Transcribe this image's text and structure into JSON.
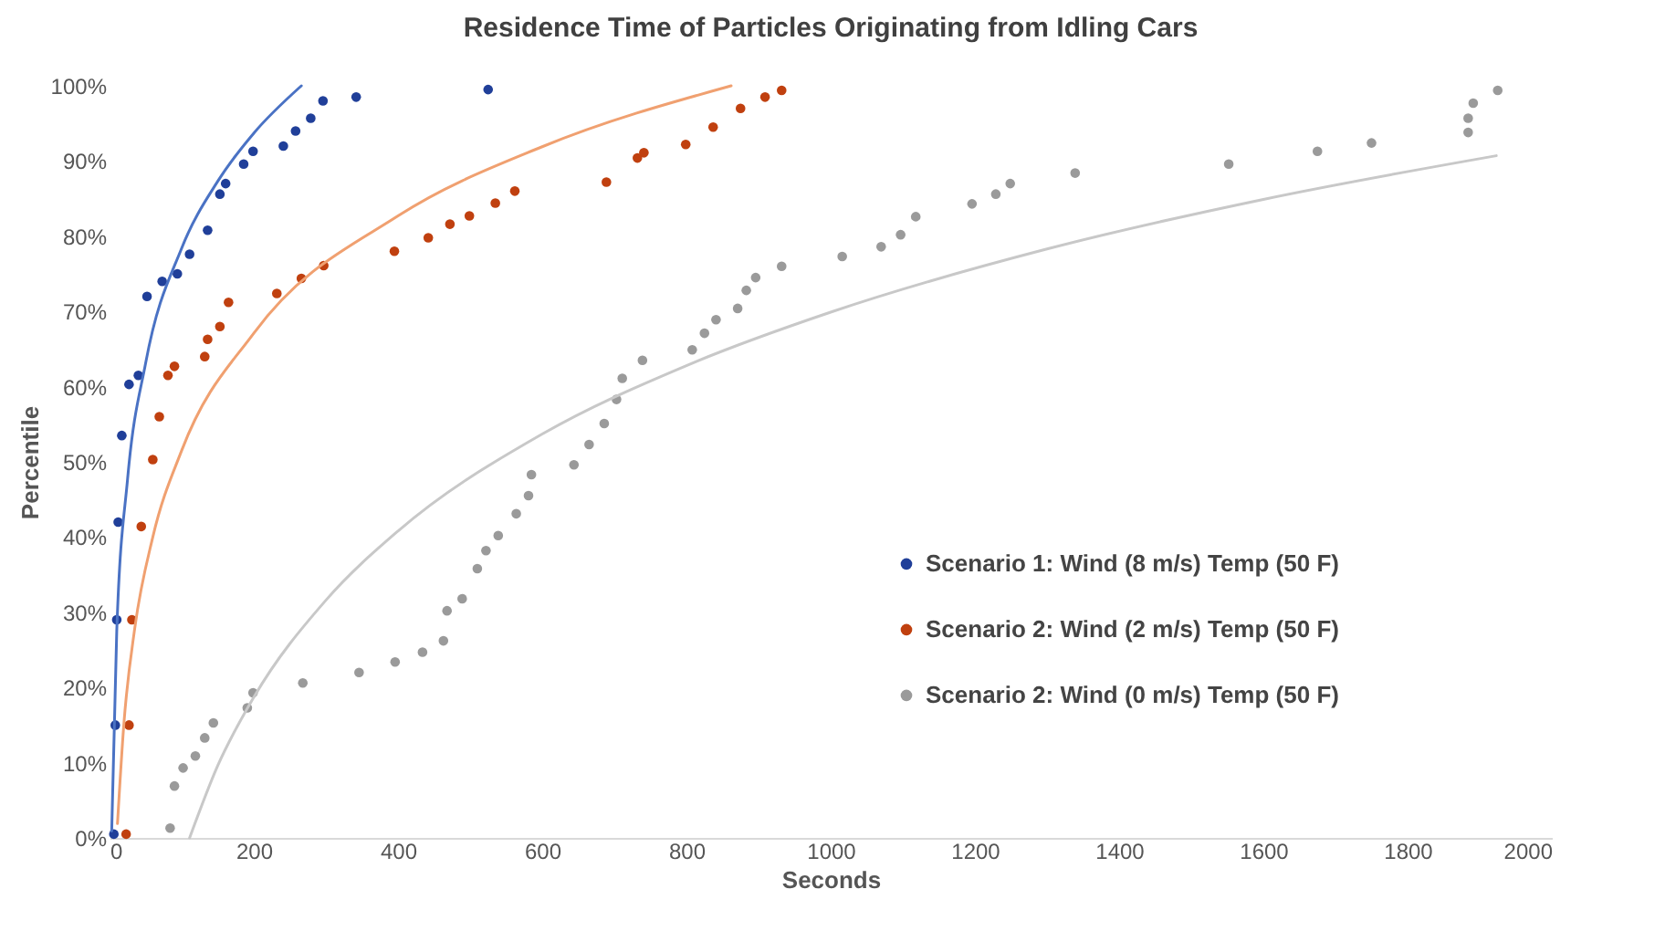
{
  "chart_data": {
    "type": "scatter",
    "title": "Residence Time of Particles Originating from Idling Cars",
    "xlabel": "Seconds",
    "ylabel": "Percentile",
    "xlim": [
      0,
      2000
    ],
    "xticks": [
      0,
      200,
      400,
      600,
      800,
      1000,
      1200,
      1400,
      1600,
      1800,
      2000
    ],
    "ylim": [
      0,
      100
    ],
    "yticks": [
      {
        "value": 0,
        "label": "0%"
      },
      {
        "value": 10,
        "label": "10%"
      },
      {
        "value": 20,
        "label": "20%"
      },
      {
        "value": 30,
        "label": "30%"
      },
      {
        "value": 40,
        "label": "40%"
      },
      {
        "value": 50,
        "label": "50%"
      },
      {
        "value": 60,
        "label": "60%"
      },
      {
        "value": 70,
        "label": "70%"
      },
      {
        "value": 80,
        "label": "80%"
      },
      {
        "value": 90,
        "label": "90%"
      },
      {
        "value": 100,
        "label": "100%"
      }
    ],
    "legend": "right",
    "series": [
      {
        "name": "Scenario 1: Wind (8 m/s) Temp (50 F)",
        "color": "#203f99",
        "marker": "circle",
        "x": [
          6,
          8,
          10,
          12,
          17,
          27,
          40,
          52,
          73,
          94,
          111,
          136,
          153,
          161,
          186,
          199,
          241,
          258,
          279,
          296,
          342,
          525
        ],
        "values": [
          0.5,
          15,
          29,
          42,
          53.5,
          60.3,
          61.5,
          72,
          74,
          75,
          77.6,
          80.8,
          85.6,
          87,
          89.6,
          91.3,
          92,
          94,
          95.7,
          98,
          98.5,
          99.5
        ]
      },
      {
        "name": "Scenario 2: Wind (2 m/s) Temp (50 F)",
        "color": "#c0400f",
        "marker": "circle",
        "x": [
          23,
          27,
          31,
          44,
          60,
          69,
          81,
          90,
          132,
          136,
          153,
          165,
          232,
          266,
          297,
          395,
          442,
          472,
          499,
          535,
          562,
          689,
          732,
          741,
          799,
          837,
          875,
          909,
          932
        ],
        "values": [
          0.5,
          15,
          29,
          41.4,
          50.3,
          56,
          61.5,
          62.7,
          64,
          66.3,
          68,
          71.2,
          72.4,
          74.4,
          76.1,
          78,
          79.8,
          81.6,
          82.7,
          84.4,
          86,
          87.2,
          90.4,
          91.1,
          92.2,
          94.5,
          97,
          98.5,
          99.4
        ]
      },
      {
        "name": "Scenario 2: Wind (0 m/s) Temp (50 F)",
        "color": "#9a9a9a",
        "marker": "circle",
        "x": [
          84,
          90,
          102,
          119,
          132,
          144,
          191,
          199,
          268,
          346,
          396,
          434,
          463,
          468,
          489,
          510,
          522,
          539,
          564,
          581,
          585,
          644,
          665,
          686,
          703,
          711,
          739,
          808,
          825,
          841,
          871,
          883,
          896,
          932,
          1016,
          1070,
          1097,
          1118,
          1196,
          1229,
          1249,
          1339,
          1552,
          1675,
          1750,
          1884,
          1884,
          1891,
          1925
        ],
        "values": [
          1.3,
          6.9,
          9.3,
          10.9,
          13.3,
          15.3,
          17.3,
          19.3,
          20.6,
          22,
          23.4,
          24.7,
          26.2,
          30.2,
          31.8,
          35.8,
          38.2,
          40.2,
          43.1,
          45.5,
          48.3,
          49.6,
          52.3,
          55.1,
          58.3,
          61.1,
          63.5,
          64.9,
          67.1,
          68.9,
          70.4,
          72.8,
          74.5,
          76,
          77.3,
          78.6,
          80.2,
          82.6,
          84.3,
          85.6,
          87,
          88.4,
          89.6,
          91.3,
          92.4,
          93.8,
          95.7,
          97.7,
          99.4
        ]
      },
      {
        "type": "line",
        "marker": "none",
        "color": "#4a72c4",
        "x": [
          3,
          10,
          25,
          50,
          100,
          150,
          200,
          266
        ],
        "values": [
          0.9,
          27.5,
          47.7,
          63.1,
          78.4,
          87.3,
          93.7,
          100
        ]
      },
      {
        "type": "line",
        "marker": "none",
        "color": "#f0a070",
        "x": [
          11,
          20,
          35,
          60,
          100,
          200,
          400,
          600,
          862
        ],
        "values": [
          1.9,
          15.3,
          27.9,
          40,
          51.5,
          67.1,
          82.7,
          91.9,
          100
        ]
      },
      {
        "type": "line",
        "marker": "none",
        "color": "#c8c8c8",
        "x": [
          111,
          150,
          200,
          300,
          400,
          600,
          800,
          1000,
          1300,
          1600,
          1923
        ],
        "values": [
          0,
          9.6,
          18.7,
          31.6,
          40.8,
          53.7,
          62.8,
          69.9,
          78.3,
          84.9,
          90.7
        ]
      }
    ]
  }
}
